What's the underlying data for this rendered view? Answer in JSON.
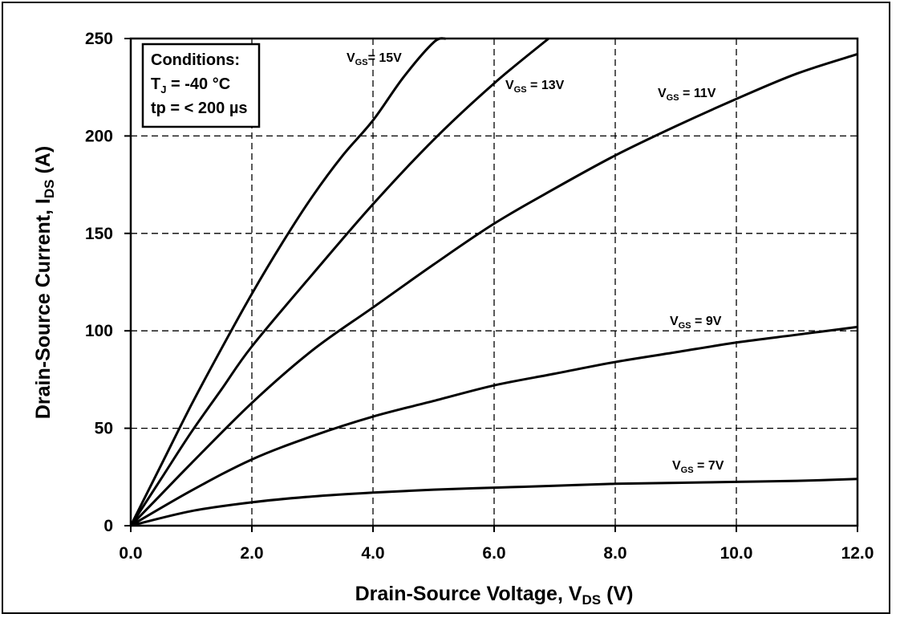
{
  "chart_data": {
    "type": "line",
    "xlabel": "Drain-Source Voltage, V",
    "xlabel_sub": "DS",
    "xlabel_suffix": " (V)",
    "ylabel": "Drain-Source Current, I",
    "ylabel_sub": "DS",
    "ylabel_suffix": " (A)",
    "xlim": [
      0,
      12
    ],
    "ylim": [
      0,
      250
    ],
    "xticks": [
      "0.0",
      "2.0",
      "4.0",
      "6.0",
      "8.0",
      "10.0",
      "12.0"
    ],
    "yticks": [
      "0",
      "50",
      "100",
      "150",
      "200",
      "250"
    ],
    "grid": "dashed",
    "conditions": {
      "title": "Conditions:",
      "line1_prefix": "T",
      "line1_sub": "J",
      "line1_suffix": " = -40 °C",
      "line2": "tp = < 200 µs"
    },
    "series": [
      {
        "name": "VGS = 15V",
        "label_main": "V",
        "label_sub": "GS",
        "label_suffix": "= 15V",
        "x": [
          0,
          0.5,
          1,
          1.5,
          2,
          2.5,
          3,
          3.5,
          4,
          4.5,
          5,
          5.2
        ],
        "y": [
          0,
          31,
          62,
          91,
          119,
          145,
          169,
          190,
          208,
          230,
          248,
          250
        ]
      },
      {
        "name": "VGS = 13V",
        "label_main": "V",
        "label_sub": "GS",
        "label_suffix": " = 13V",
        "x": [
          0,
          0.5,
          1,
          1.5,
          2,
          3,
          4,
          5,
          6,
          6.9
        ],
        "y": [
          0,
          24,
          48,
          70,
          92,
          129,
          165,
          198,
          227,
          250
        ]
      },
      {
        "name": "VGS = 11V",
        "label_main": "V",
        "label_sub": "GS",
        "label_suffix": " = 11V",
        "x": [
          0,
          0.5,
          1,
          2,
          3,
          4,
          5,
          6,
          7,
          8,
          9,
          10,
          11,
          12
        ],
        "y": [
          0,
          16,
          32,
          63,
          90,
          112,
          134,
          155,
          173,
          190,
          205,
          219,
          232,
          242
        ]
      },
      {
        "name": "VGS = 9V",
        "label_main": "V",
        "label_sub": "GS",
        "label_suffix": " = 9V",
        "x": [
          0,
          1,
          2,
          3,
          4,
          5,
          6,
          7,
          8,
          9,
          10,
          11,
          12
        ],
        "y": [
          0,
          18,
          34,
          46,
          56,
          64,
          72,
          78,
          84,
          89,
          94,
          98,
          102
        ]
      },
      {
        "name": "VGS = 7V",
        "label_main": "V",
        "label_sub": "GS",
        "label_suffix": " = 7V",
        "x": [
          0,
          1,
          2,
          3,
          4,
          5,
          6,
          7,
          8,
          9,
          10,
          11,
          12
        ],
        "y": [
          0,
          7.5,
          12,
          15,
          17,
          18.5,
          19.5,
          20.5,
          21.5,
          22,
          22.5,
          23,
          24
        ]
      }
    ]
  }
}
